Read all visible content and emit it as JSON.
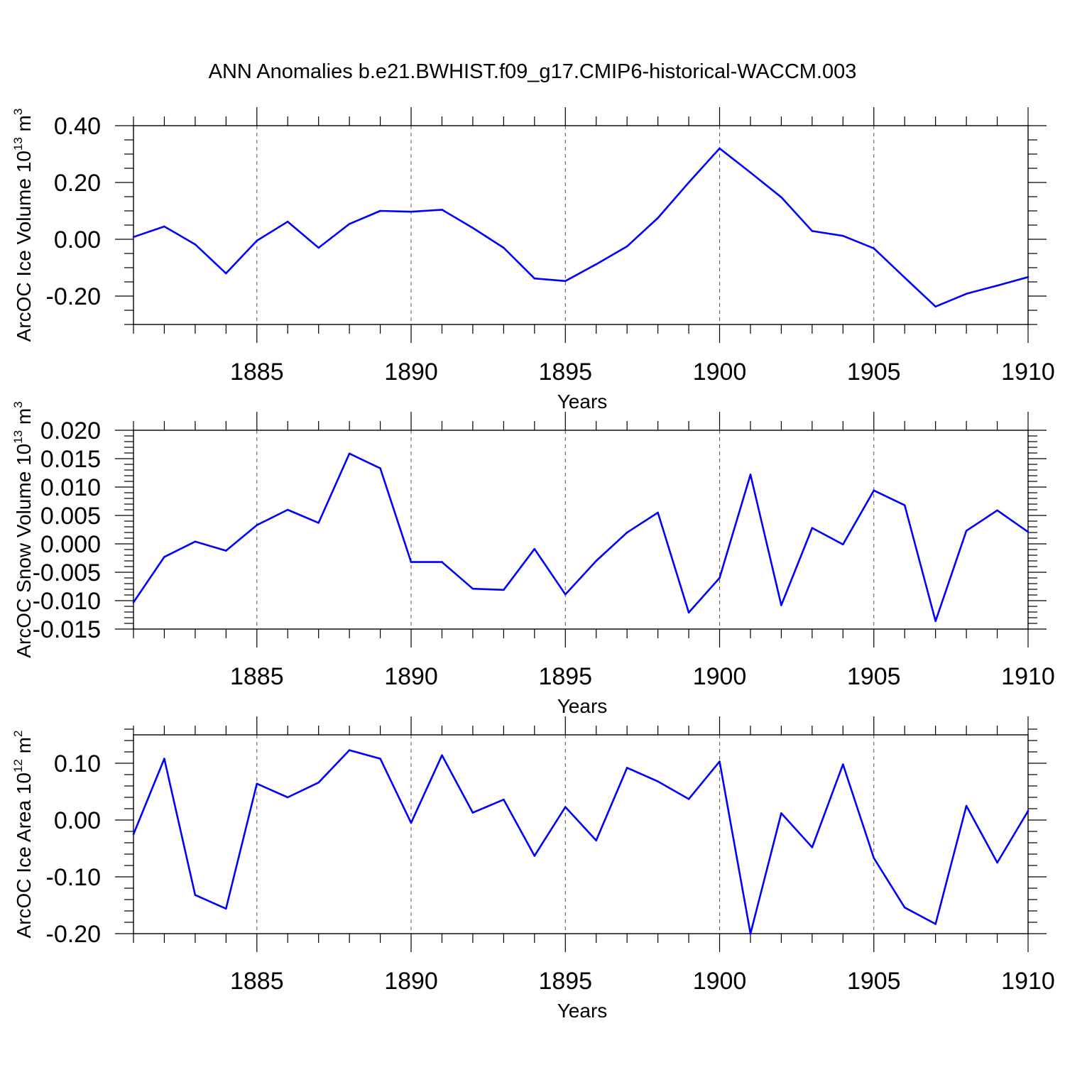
{
  "title": "ANN Anomalies b.e21.BWHIST.f09_g17.CMIP6-historical-WACCM.003",
  "colors": {
    "series": "#0000ff",
    "axes": "#000000",
    "grid": "#555555"
  },
  "chart_data": [
    {
      "type": "line",
      "name": "ice-volume",
      "ylabel": "ArcOC Ice Volume 10",
      "ylabel_exp": "13",
      "ylabel_unit": " m",
      "ylabel_unit_exp": "3",
      "xlabel": "Years",
      "xlim": [
        1881,
        1910
      ],
      "ylim": [
        -0.3,
        0.4
      ],
      "yticks": [
        0.4,
        0.2,
        0.0,
        -0.2
      ],
      "ytick_labels": [
        "0.40",
        "0.20",
        "0.00",
        "-0.20"
      ],
      "yminor_step": 0.05,
      "xticks": [
        1885,
        1890,
        1895,
        1900,
        1905,
        1910
      ],
      "xtick_labels": [
        "1885",
        "1890",
        "1895",
        "1900",
        "1905",
        "1910"
      ],
      "x": [
        1881,
        1882,
        1883,
        1884,
        1885,
        1886,
        1887,
        1888,
        1889,
        1890,
        1891,
        1892,
        1893,
        1894,
        1895,
        1896,
        1897,
        1898,
        1899,
        1900,
        1901,
        1902,
        1903,
        1904,
        1905,
        1906,
        1907,
        1908,
        1909,
        1910
      ],
      "y": [
        0.008,
        0.045,
        -0.018,
        -0.12,
        -0.005,
        0.062,
        -0.03,
        0.054,
        0.1,
        0.097,
        0.104,
        0.04,
        -0.03,
        -0.138,
        -0.147,
        -0.088,
        -0.025,
        0.075,
        0.2,
        0.32,
        0.235,
        0.148,
        0.029,
        0.012,
        -0.032,
        -0.135,
        -0.237,
        -0.192,
        -0.163,
        -0.133
      ]
    },
    {
      "type": "line",
      "name": "snow-volume",
      "ylabel": "ArcOC Snow Volume 10",
      "ylabel_exp": "13",
      "ylabel_unit": " m",
      "ylabel_unit_exp": "3",
      "xlabel": "Years",
      "xlim": [
        1881,
        1910
      ],
      "ylim": [
        -0.015,
        0.02
      ],
      "yticks": [
        0.02,
        0.015,
        0.01,
        0.005,
        0.0,
        -0.005,
        -0.01,
        -0.015
      ],
      "ytick_labels": [
        "0.020",
        "0.015",
        "0.010",
        "0.005",
        "0.000",
        "-0.005",
        "-0.010",
        "-0.015"
      ],
      "yminor_step": 0.001,
      "xticks": [
        1885,
        1890,
        1895,
        1900,
        1905,
        1910
      ],
      "xtick_labels": [
        "1885",
        "1890",
        "1895",
        "1900",
        "1905",
        "1910"
      ],
      "x": [
        1881,
        1882,
        1883,
        1884,
        1885,
        1886,
        1887,
        1888,
        1889,
        1890,
        1891,
        1892,
        1893,
        1894,
        1895,
        1896,
        1897,
        1898,
        1899,
        1900,
        1901,
        1902,
        1903,
        1904,
        1905,
        1906,
        1907,
        1908,
        1909,
        1910
      ],
      "y": [
        -0.0103,
        -0.0023,
        0.0004,
        -0.0012,
        0.0033,
        0.006,
        0.0037,
        0.0159,
        0.0133,
        -0.0032,
        -0.0032,
        -0.0079,
        -0.0081,
        -0.0009,
        -0.0089,
        -0.003,
        0.002,
        0.0055,
        -0.0121,
        -0.006,
        0.0122,
        -0.0108,
        0.0028,
        -0.0001,
        0.0094,
        0.0068,
        -0.0136,
        0.0023,
        0.0059,
        0.0021
      ]
    },
    {
      "type": "line",
      "name": "ice-area",
      "ylabel": "ArcOC Ice Area 10",
      "ylabel_exp": "12",
      "ylabel_unit": " m",
      "ylabel_unit_exp": "2",
      "xlabel": "Years",
      "xlim": [
        1881,
        1910
      ],
      "ylim": [
        -0.2,
        0.15
      ],
      "yticks": [
        0.1,
        0.0,
        -0.1,
        -0.2
      ],
      "ytick_labels": [
        "0.10",
        "0.00",
        "-0.10",
        "-0.20"
      ],
      "yminor_step": 0.02,
      "xticks": [
        1885,
        1890,
        1895,
        1900,
        1905,
        1910
      ],
      "xtick_labels": [
        "1885",
        "1890",
        "1895",
        "1900",
        "1905",
        "1910"
      ],
      "x": [
        1881,
        1882,
        1883,
        1884,
        1885,
        1886,
        1887,
        1888,
        1889,
        1890,
        1891,
        1892,
        1893,
        1894,
        1895,
        1896,
        1897,
        1898,
        1899,
        1900,
        1901,
        1902,
        1903,
        1904,
        1905,
        1906,
        1907,
        1908,
        1909,
        1910
      ],
      "y": [
        -0.025,
        0.108,
        -0.132,
        -0.156,
        0.064,
        0.04,
        0.066,
        0.123,
        0.108,
        -0.005,
        0.114,
        0.013,
        0.036,
        -0.063,
        0.023,
        -0.036,
        0.092,
        0.068,
        0.037,
        0.103,
        -0.2,
        0.012,
        -0.048,
        0.098,
        -0.067,
        -0.154,
        -0.183,
        0.025,
        -0.075,
        0.016
      ]
    }
  ]
}
